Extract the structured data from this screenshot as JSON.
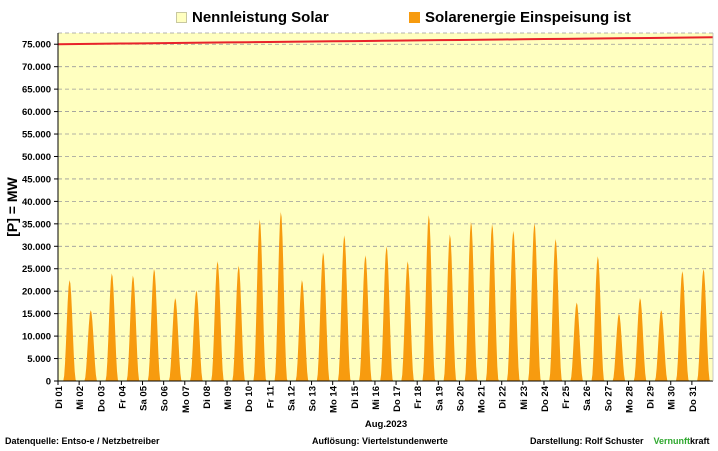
{
  "legend": {
    "capacity_label": "Nennleistung Solar",
    "feed_in_label": "Solarenergie Einspeisung ist"
  },
  "footer": {
    "source": "Datenquelle:  Entso-e  / Netzbetreiber",
    "resolution": "Auflösung: Viertelstundenwerte",
    "author": "Darstellung:  Rolf Schuster",
    "brand_green": "Vernunft",
    "brand_rest": "kraft"
  },
  "colors": {
    "plot_background": "#ffffc0",
    "capacity_line": "#e8232a",
    "feed_in": "#f79b0f",
    "brand_green": "#2ea82e"
  },
  "chart_data": {
    "type": "area",
    "xlabel": "Aug.2023",
    "ylabel": "[P]  =  MW",
    "ylim": [
      0,
      77500
    ],
    "yticks": [
      0,
      5000,
      10000,
      15000,
      20000,
      25000,
      30000,
      35000,
      40000,
      45000,
      50000,
      55000,
      60000,
      65000,
      70000,
      75000
    ],
    "ytick_labels": [
      "0",
      "5.000",
      "10.000",
      "15.000",
      "20.000",
      "25.000",
      "30.000",
      "35.000",
      "40.000",
      "45.000",
      "50.000",
      "55.000",
      "60.000",
      "65.000",
      "70.000",
      "75.000"
    ],
    "grid": "horizontal dashed",
    "categories": [
      "Di 01",
      "Mi 02",
      "Do 03",
      "Fr 04",
      "Sa 05",
      "So 06",
      "Mo 07",
      "Di 08",
      "Mi 09",
      "Do 10",
      "Fr 11",
      "Sa 12",
      "So 13",
      "Mo 14",
      "Di 15",
      "Mi 16",
      "Do 17",
      "Fr 18",
      "Sa 19",
      "So 20",
      "Mo 21",
      "Di 22",
      "Mi 23",
      "Do 24",
      "Fr 25",
      "Sa 26",
      "So 27",
      "Mo 28",
      "Di 29",
      "Mi 30",
      "Do 31"
    ],
    "series": [
      {
        "name": "Nennleistung Solar",
        "type": "line",
        "values": [
          75000,
          75050,
          75100,
          75150,
          75200,
          75250,
          75300,
          75350,
          75400,
          75450,
          75500,
          75550,
          75600,
          75650,
          75700,
          75750,
          75800,
          75850,
          75900,
          75950,
          76000,
          76050,
          76100,
          76150,
          76200,
          76250,
          76300,
          76350,
          76400,
          76450,
          76500
        ]
      },
      {
        "name": "Solarenergie Einspeisung ist",
        "type": "area",
        "daily_peaks": [
          22500,
          15800,
          24000,
          23500,
          25000,
          18500,
          20200,
          26700,
          25700,
          36000,
          37700,
          22500,
          28700,
          32500,
          28000,
          30000,
          26700,
          37000,
          32700,
          35500,
          35000,
          33500,
          35200,
          31700,
          17500,
          27800,
          15000,
          18500,
          15800,
          24500,
          25000
        ]
      }
    ]
  }
}
